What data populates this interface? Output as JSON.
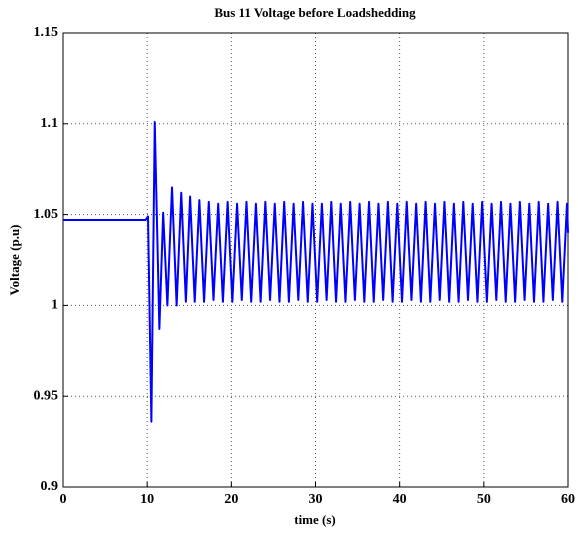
{
  "chart_data": {
    "type": "line",
    "title": "Bus 11 Voltage before Loadshedding",
    "xlabel": "time (s)",
    "ylabel": "Voltage (p.u)",
    "xlim": [
      0,
      60
    ],
    "xticks": [
      0,
      10,
      20,
      30,
      40,
      50,
      60
    ],
    "ylim": [
      0.9,
      1.15
    ],
    "yticks": [
      0.9,
      0.95,
      1,
      1.05,
      1.1,
      1.15
    ],
    "grid": true,
    "series": [
      {
        "color": "#0000ff",
        "x": [
          0,
          9.8,
          10.1,
          10.5,
          10.9,
          11.45,
          11.9,
          12.4,
          12.95,
          13.5,
          14.05,
          14.6,
          15.1,
          15.65,
          16.2,
          16.76,
          17.32,
          17.88,
          18.44,
          19.0,
          19.56,
          20.12,
          20.68,
          21.24,
          21.8,
          22.36,
          22.92,
          23.48,
          24.04,
          24.6,
          25.16,
          25.72,
          26.28,
          26.84,
          27.4,
          27.96,
          28.52,
          29.08,
          29.64,
          30.2,
          30.76,
          31.32,
          31.88,
          32.44,
          33.0,
          33.56,
          34.12,
          34.68,
          35.24,
          35.8,
          36.36,
          36.92,
          37.48,
          38.04,
          38.6,
          39.16,
          39.72,
          40.28,
          40.84,
          41.4,
          41.96,
          42.52,
          43.08,
          43.64,
          44.2,
          44.76,
          45.32,
          45.88,
          46.44,
          47.0,
          47.56,
          48.12,
          48.68,
          49.24,
          49.8,
          50.36,
          50.92,
          51.48,
          52.04,
          52.6,
          53.16,
          53.72,
          54.28,
          54.84,
          55.4,
          55.96,
          56.52,
          57.08,
          57.64,
          58.2,
          58.76,
          59.32,
          59.88,
          60
        ],
        "values": [
          1.047,
          1.047,
          1.049,
          0.936,
          1.101,
          0.987,
          1.051,
          1.0,
          1.065,
          1.0,
          1.062,
          1.002,
          1.06,
          1.002,
          1.058,
          1.002,
          1.057,
          1.003,
          1.056,
          1.002,
          1.057,
          1.002,
          1.056,
          1.003,
          1.057,
          1.002,
          1.056,
          1.002,
          1.057,
          1.003,
          1.056,
          1.002,
          1.057,
          1.002,
          1.056,
          1.003,
          1.057,
          1.002,
          1.056,
          1.002,
          1.056,
          1.003,
          1.057,
          1.002,
          1.056,
          1.002,
          1.057,
          1.003,
          1.056,
          1.002,
          1.057,
          1.002,
          1.056,
          1.003,
          1.057,
          1.002,
          1.056,
          1.002,
          1.057,
          1.003,
          1.056,
          1.002,
          1.057,
          1.002,
          1.056,
          1.003,
          1.057,
          1.002,
          1.056,
          1.002,
          1.057,
          1.003,
          1.056,
          1.002,
          1.057,
          1.002,
          1.056,
          1.003,
          1.057,
          1.002,
          1.056,
          1.002,
          1.057,
          1.003,
          1.056,
          1.002,
          1.057,
          1.002,
          1.056,
          1.003,
          1.057,
          1.002,
          1.056,
          1.04
        ]
      }
    ]
  }
}
